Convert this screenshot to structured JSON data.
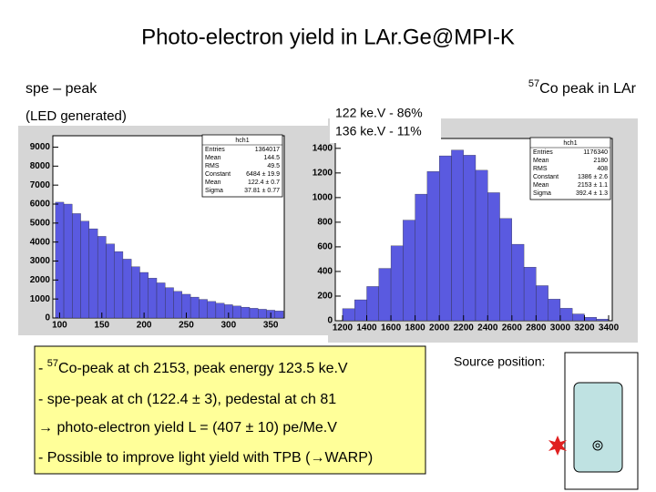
{
  "title": "Photo-electron yield in LAr.Ge@MPI-K",
  "left_label": "spe – peak",
  "left_sublabel": "(LED generated)",
  "right_label": {
    "sup": "57",
    "text": "Co peak in LAr"
  },
  "energy_note": [
    "122 ke.V - 86%",
    "136 ke.V - 11%"
  ],
  "chart_data": [
    {
      "type": "histogram",
      "color": "#5a5ae0",
      "bins": [
        95,
        105,
        115,
        125,
        135,
        145,
        155,
        165,
        175,
        185,
        195,
        205,
        215,
        225,
        235,
        245,
        255,
        265,
        275,
        285,
        295,
        305,
        315,
        325,
        335,
        345,
        355,
        365
      ],
      "values": [
        6100,
        6000,
        5500,
        5100,
        4700,
        4300,
        3900,
        3500,
        3100,
        2700,
        2400,
        2100,
        1850,
        1600,
        1400,
        1250,
        1100,
        980,
        870,
        780,
        700,
        630,
        570,
        510,
        460,
        410,
        370
      ],
      "xlim": [
        92,
        366
      ],
      "ylim": [
        0,
        9600
      ],
      "xticks": [
        100,
        150,
        200,
        250,
        300,
        350
      ],
      "yticks": [
        0,
        1000,
        2000,
        3000,
        4000,
        5000,
        6000,
        7000,
        8000,
        9000
      ],
      "stats": {
        "title": "hch1",
        "rows": [
          [
            "Entries",
            "1364017"
          ],
          [
            "Mean",
            "144.5"
          ],
          [
            "RMS",
            "49.5"
          ],
          [
            "Constant",
            "6484 ± 19.9"
          ],
          [
            "Mean",
            "122.4 ± 0.7"
          ],
          [
            "Sigma",
            "37.81 ± 0.77"
          ]
        ]
      }
    },
    {
      "type": "histogram",
      "color": "#5a5ae0",
      "bins": [
        1200,
        1300,
        1400,
        1500,
        1600,
        1700,
        1800,
        1900,
        2000,
        2100,
        2200,
        2300,
        2400,
        2500,
        2600,
        2700,
        2800,
        2900,
        3000,
        3100,
        3200,
        3300,
        3400
      ],
      "values": [
        98,
        170,
        278,
        425,
        608,
        817,
        1028,
        1212,
        1339,
        1386,
        1344,
        1222,
        1040,
        830,
        621,
        435,
        285,
        175,
        101,
        55,
        28,
        13
      ],
      "xlim": [
        1140,
        3430
      ],
      "ylim": [
        0,
        1480
      ],
      "xticks": [
        1200,
        1400,
        1600,
        1800,
        2000,
        2200,
        2400,
        2600,
        2800,
        3000,
        3200,
        3400
      ],
      "yticks": [
        0,
        200,
        400,
        600,
        800,
        1000,
        1200,
        1400
      ],
      "stats": {
        "title": "hch1",
        "rows": [
          [
            "Entries",
            "1176340"
          ],
          [
            "Mean",
            "2180"
          ],
          [
            "RMS",
            "408"
          ],
          [
            "Constant",
            "1386 ± 2.6"
          ],
          [
            "Mean",
            "2153 ± 1.1"
          ],
          [
            "Sigma",
            "392.4 ± 1.3"
          ]
        ]
      }
    }
  ],
  "notes": [
    {
      "prefix": "- ",
      "sup": "57",
      "text": "Co-peak at ch 2153, peak energy 123.5 ke.V"
    },
    {
      "text": "- spe-peak at ch (122.4 ± 3), pedestal at ch 81"
    },
    {
      "text": "→ photo-electron yield L = (407 ± 10) pe/Me.V"
    },
    {
      "text": "- Possible to improve light yield with TPB (→WARP)"
    }
  ],
  "source_label": "Source position:"
}
